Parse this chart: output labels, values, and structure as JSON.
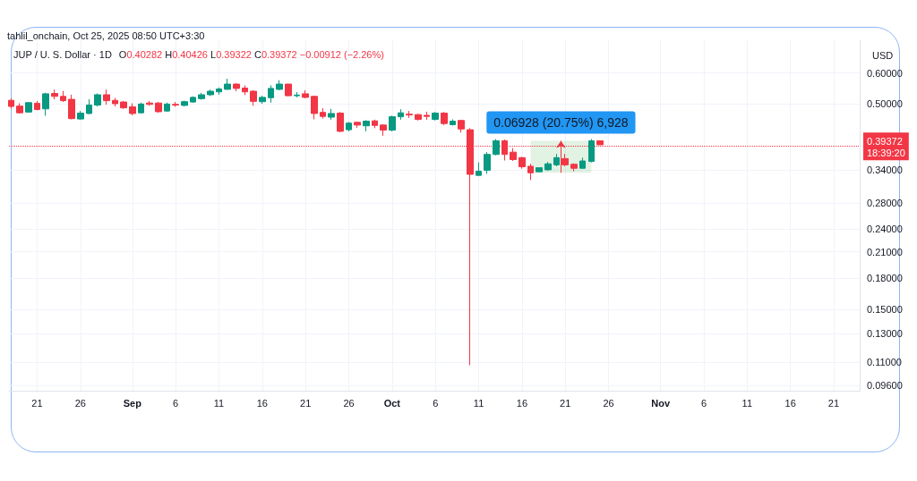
{
  "chart_data": {
    "type": "candlestick",
    "title": "JUP / U. S. Dollar · 1D",
    "ylabel": "USD",
    "annotations": [
      "tahlil_onchain, Oct 25, 2025 08:50 UTC+3:30",
      "O0.40282 H0.40426 L0.39322 C0.39372 −0.00912 (−2.26%)",
      {
        "text": "0.06928 (20.75%) 6,928",
        "x": "2025-10-20T12:00",
        "y": 0.4032
      },
      "18:39:20"
    ],
    "x": [
      "2025-08-18",
      "2025-08-19",
      "2025-08-20",
      "2025-08-21",
      "2025-08-22",
      "2025-08-23",
      "2025-08-24",
      "2025-08-25",
      "2025-08-26",
      "2025-08-27",
      "2025-08-28",
      "2025-08-29",
      "2025-08-30",
      "2025-08-31",
      "2025-09-01",
      "2025-09-02",
      "2025-09-03",
      "2025-09-04",
      "2025-09-05",
      "2025-09-06",
      "2025-09-07",
      "2025-09-08",
      "2025-09-09",
      "2025-09-10",
      "2025-09-11",
      "2025-09-12",
      "2025-09-13",
      "2025-09-14",
      "2025-09-15",
      "2025-09-16",
      "2025-09-17",
      "2025-09-18",
      "2025-09-19",
      "2025-09-20",
      "2025-09-21",
      "2025-09-22",
      "2025-09-23",
      "2025-09-24",
      "2025-09-25",
      "2025-09-26",
      "2025-09-27",
      "2025-09-28",
      "2025-09-29",
      "2025-09-30",
      "2025-10-01",
      "2025-10-02",
      "2025-10-03",
      "2025-10-04",
      "2025-10-05",
      "2025-10-06",
      "2025-10-07",
      "2025-10-08",
      "2025-10-09",
      "2025-10-10",
      "2025-10-11",
      "2025-10-12",
      "2025-10-13",
      "2025-10-14",
      "2025-10-15",
      "2025-10-16",
      "2025-10-17",
      "2025-10-18",
      "2025-10-19",
      "2025-10-20",
      "2025-10-21",
      "2025-10-22",
      "2025-10-23",
      "2025-10-24",
      "2025-10-25"
    ],
    "ohlc": [
      [
        0.511,
        0.517,
        0.487,
        0.493
      ],
      [
        0.494,
        0.502,
        0.473,
        0.475
      ],
      [
        0.477,
        0.506,
        0.475,
        0.504
      ],
      [
        0.502,
        0.509,
        0.482,
        0.484
      ],
      [
        0.486,
        0.534,
        0.467,
        0.531
      ],
      [
        0.532,
        0.544,
        0.514,
        0.523
      ],
      [
        0.523,
        0.54,
        0.506,
        0.51
      ],
      [
        0.514,
        0.528,
        0.457,
        0.459
      ],
      [
        0.458,
        0.48,
        0.456,
        0.474
      ],
      [
        0.473,
        0.514,
        0.471,
        0.497
      ],
      [
        0.497,
        0.532,
        0.493,
        0.528
      ],
      [
        0.528,
        0.544,
        0.498,
        0.51
      ],
      [
        0.511,
        0.518,
        0.493,
        0.501
      ],
      [
        0.506,
        0.509,
        0.486,
        0.489
      ],
      [
        0.492,
        0.502,
        0.468,
        0.473
      ],
      [
        0.475,
        0.504,
        0.473,
        0.5
      ],
      [
        0.503,
        0.509,
        0.495,
        0.499
      ],
      [
        0.503,
        0.506,
        0.475,
        0.478
      ],
      [
        0.48,
        0.504,
        0.478,
        0.5
      ],
      [
        0.499,
        0.506,
        0.492,
        0.497
      ],
      [
        0.496,
        0.51,
        0.493,
        0.507
      ],
      [
        0.506,
        0.523,
        0.504,
        0.52
      ],
      [
        0.516,
        0.534,
        0.513,
        0.528
      ],
      [
        0.528,
        0.544,
        0.524,
        0.539
      ],
      [
        0.537,
        0.551,
        0.528,
        0.546
      ],
      [
        0.545,
        0.58,
        0.544,
        0.562
      ],
      [
        0.562,
        0.565,
        0.539,
        0.548
      ],
      [
        0.549,
        0.558,
        0.527,
        0.537
      ],
      [
        0.539,
        0.542,
        0.495,
        0.508
      ],
      [
        0.507,
        0.525,
        0.501,
        0.52
      ],
      [
        0.519,
        0.558,
        0.504,
        0.548
      ],
      [
        0.545,
        0.575,
        0.542,
        0.562
      ],
      [
        0.562,
        0.563,
        0.523,
        0.525
      ],
      [
        0.525,
        0.536,
        0.52,
        0.527
      ],
      [
        0.531,
        0.542,
        0.517,
        0.52
      ],
      [
        0.523,
        0.525,
        0.457,
        0.473
      ],
      [
        0.476,
        0.488,
        0.459,
        0.465
      ],
      [
        0.463,
        0.486,
        0.456,
        0.473
      ],
      [
        0.474,
        0.477,
        0.424,
        0.426
      ],
      [
        0.43,
        0.45,
        0.426,
        0.447
      ],
      [
        0.449,
        0.451,
        0.435,
        0.442
      ],
      [
        0.44,
        0.455,
        0.426,
        0.452
      ],
      [
        0.453,
        0.456,
        0.434,
        0.441
      ],
      [
        0.442,
        0.444,
        0.415,
        0.429
      ],
      [
        0.429,
        0.467,
        0.426,
        0.464
      ],
      [
        0.464,
        0.485,
        0.456,
        0.475
      ],
      [
        0.471,
        0.48,
        0.461,
        0.469
      ],
      [
        0.47,
        0.472,
        0.454,
        0.457
      ],
      [
        0.468,
        0.478,
        0.456,
        0.465
      ],
      [
        0.457,
        0.477,
        0.454,
        0.474
      ],
      [
        0.474,
        0.477,
        0.442,
        0.446
      ],
      [
        0.443,
        0.457,
        0.441,
        0.452
      ],
      [
        0.454,
        0.456,
        0.423,
        0.432
      ],
      [
        0.43,
        0.434,
        0.108,
        0.331
      ],
      [
        0.329,
        0.355,
        0.328,
        0.337
      ],
      [
        0.339,
        0.377,
        0.332,
        0.372
      ],
      [
        0.372,
        0.407,
        0.37,
        0.403
      ],
      [
        0.403,
        0.406,
        0.359,
        0.372
      ],
      [
        0.377,
        0.386,
        0.358,
        0.361
      ],
      [
        0.365,
        0.367,
        0.342,
        0.346
      ],
      [
        0.347,
        0.352,
        0.32,
        0.334
      ],
      [
        0.336,
        0.344,
        0.336,
        0.344
      ],
      [
        0.34,
        0.356,
        0.338,
        0.352
      ],
      [
        0.35,
        0.373,
        0.347,
        0.365
      ],
      [
        0.363,
        0.373,
        0.347,
        0.35
      ],
      [
        0.351,
        0.353,
        0.337,
        0.343
      ],
      [
        0.343,
        0.365,
        0.342,
        0.358
      ],
      [
        0.357,
        0.407,
        0.355,
        0.40284
      ],
      [
        0.40282,
        0.40426,
        0.39322,
        0.39372
      ]
    ],
    "colors": [
      "#f23645",
      "#f23645",
      "#089981",
      "#f23645",
      "#089981",
      "#f23645",
      "#f23645",
      "#f23645",
      "#089981",
      "#089981",
      "#089981",
      "#f23645",
      "#f23645",
      "#f23645",
      "#f23645",
      "#089981",
      "#f23645",
      "#f23645",
      "#089981",
      "#f23645",
      "#089981",
      "#089981",
      "#089981",
      "#089981",
      "#089981",
      "#089981",
      "#f23645",
      "#f23645",
      "#f23645",
      "#089981",
      "#089981",
      "#089981",
      "#f23645",
      "#089981",
      "#f23645",
      "#f23645",
      "#f23645",
      "#089981",
      "#f23645",
      "#089981",
      "#f23645",
      "#089981",
      "#f23645",
      "#f23645",
      "#089981",
      "#089981",
      "#f23645",
      "#f23645",
      "#f23645",
      "#089981",
      "#f23645",
      "#089981",
      "#f23645",
      "#f23645",
      "#089981",
      "#089981",
      "#089981",
      "#f23645",
      "#f23645",
      "#f23645",
      "#f23645",
      "#089981",
      "#089981",
      "#089981",
      "#f23645",
      "#f23645",
      "#089981",
      "#089981",
      "#f23645"
    ],
    "xlim": [
      "2025-08-17T18:00",
      "2025-11-24"
    ],
    "ylim": [
      0.093,
      0.727
    ],
    "xticks": [
      {
        "value": "2025-08-21",
        "label": "21"
      },
      {
        "value": "2025-08-26",
        "label": "26"
      },
      {
        "value": "2025-09-01",
        "label": "Sep"
      },
      {
        "value": "2025-09-06",
        "label": "6"
      },
      {
        "value": "2025-09-11",
        "label": "11"
      },
      {
        "value": "2025-09-16",
        "label": "16"
      },
      {
        "value": "2025-09-21",
        "label": "21"
      },
      {
        "value": "2025-09-26",
        "label": "26"
      },
      {
        "value": "2025-10-01",
        "label": "Oct"
      },
      {
        "value": "2025-10-06",
        "label": "6"
      },
      {
        "value": "2025-10-11",
        "label": "11"
      },
      {
        "value": "2025-10-16",
        "label": "16"
      },
      {
        "value": "2025-10-21",
        "label": "21"
      },
      {
        "value": "2025-10-26",
        "label": "26"
      },
      {
        "value": "2025-11-01",
        "label": "Nov"
      },
      {
        "value": "2025-11-06",
        "label": "6"
      },
      {
        "value": "2025-11-11",
        "label": "11"
      },
      {
        "value": "2025-11-16",
        "label": "16"
      },
      {
        "value": "2025-11-21",
        "label": "21"
      }
    ],
    "yticks": [
      {
        "value": 0.6,
        "label": "0.60000"
      },
      {
        "value": 0.5,
        "label": "0.50000"
      },
      {
        "value": 0.34,
        "label": "0.34000"
      },
      {
        "value": 0.28,
        "label": "0.28000"
      },
      {
        "value": 0.24,
        "label": "0.24000"
      },
      {
        "value": 0.21,
        "label": "0.21000"
      },
      {
        "value": 0.18,
        "label": "0.18000"
      },
      {
        "value": 0.15,
        "label": "0.15000"
      },
      {
        "value": 0.13,
        "label": "0.13000"
      },
      {
        "value": 0.11,
        "label": "0.11000"
      },
      {
        "value": 0.096,
        "label": "0.09600"
      }
    ],
    "log": true,
    "grid": true,
    "ref_lines": [
      {
        "axis": "y",
        "value": 0.39372,
        "label": "0.39372",
        "color": "#f23645",
        "line_style": "dotted"
      }
    ],
    "bands": [
      {
        "axis": "x",
        "from": "2025-10-17",
        "to": "2025-10-24",
        "color": "#4caf50"
      }
    ]
  }
}
